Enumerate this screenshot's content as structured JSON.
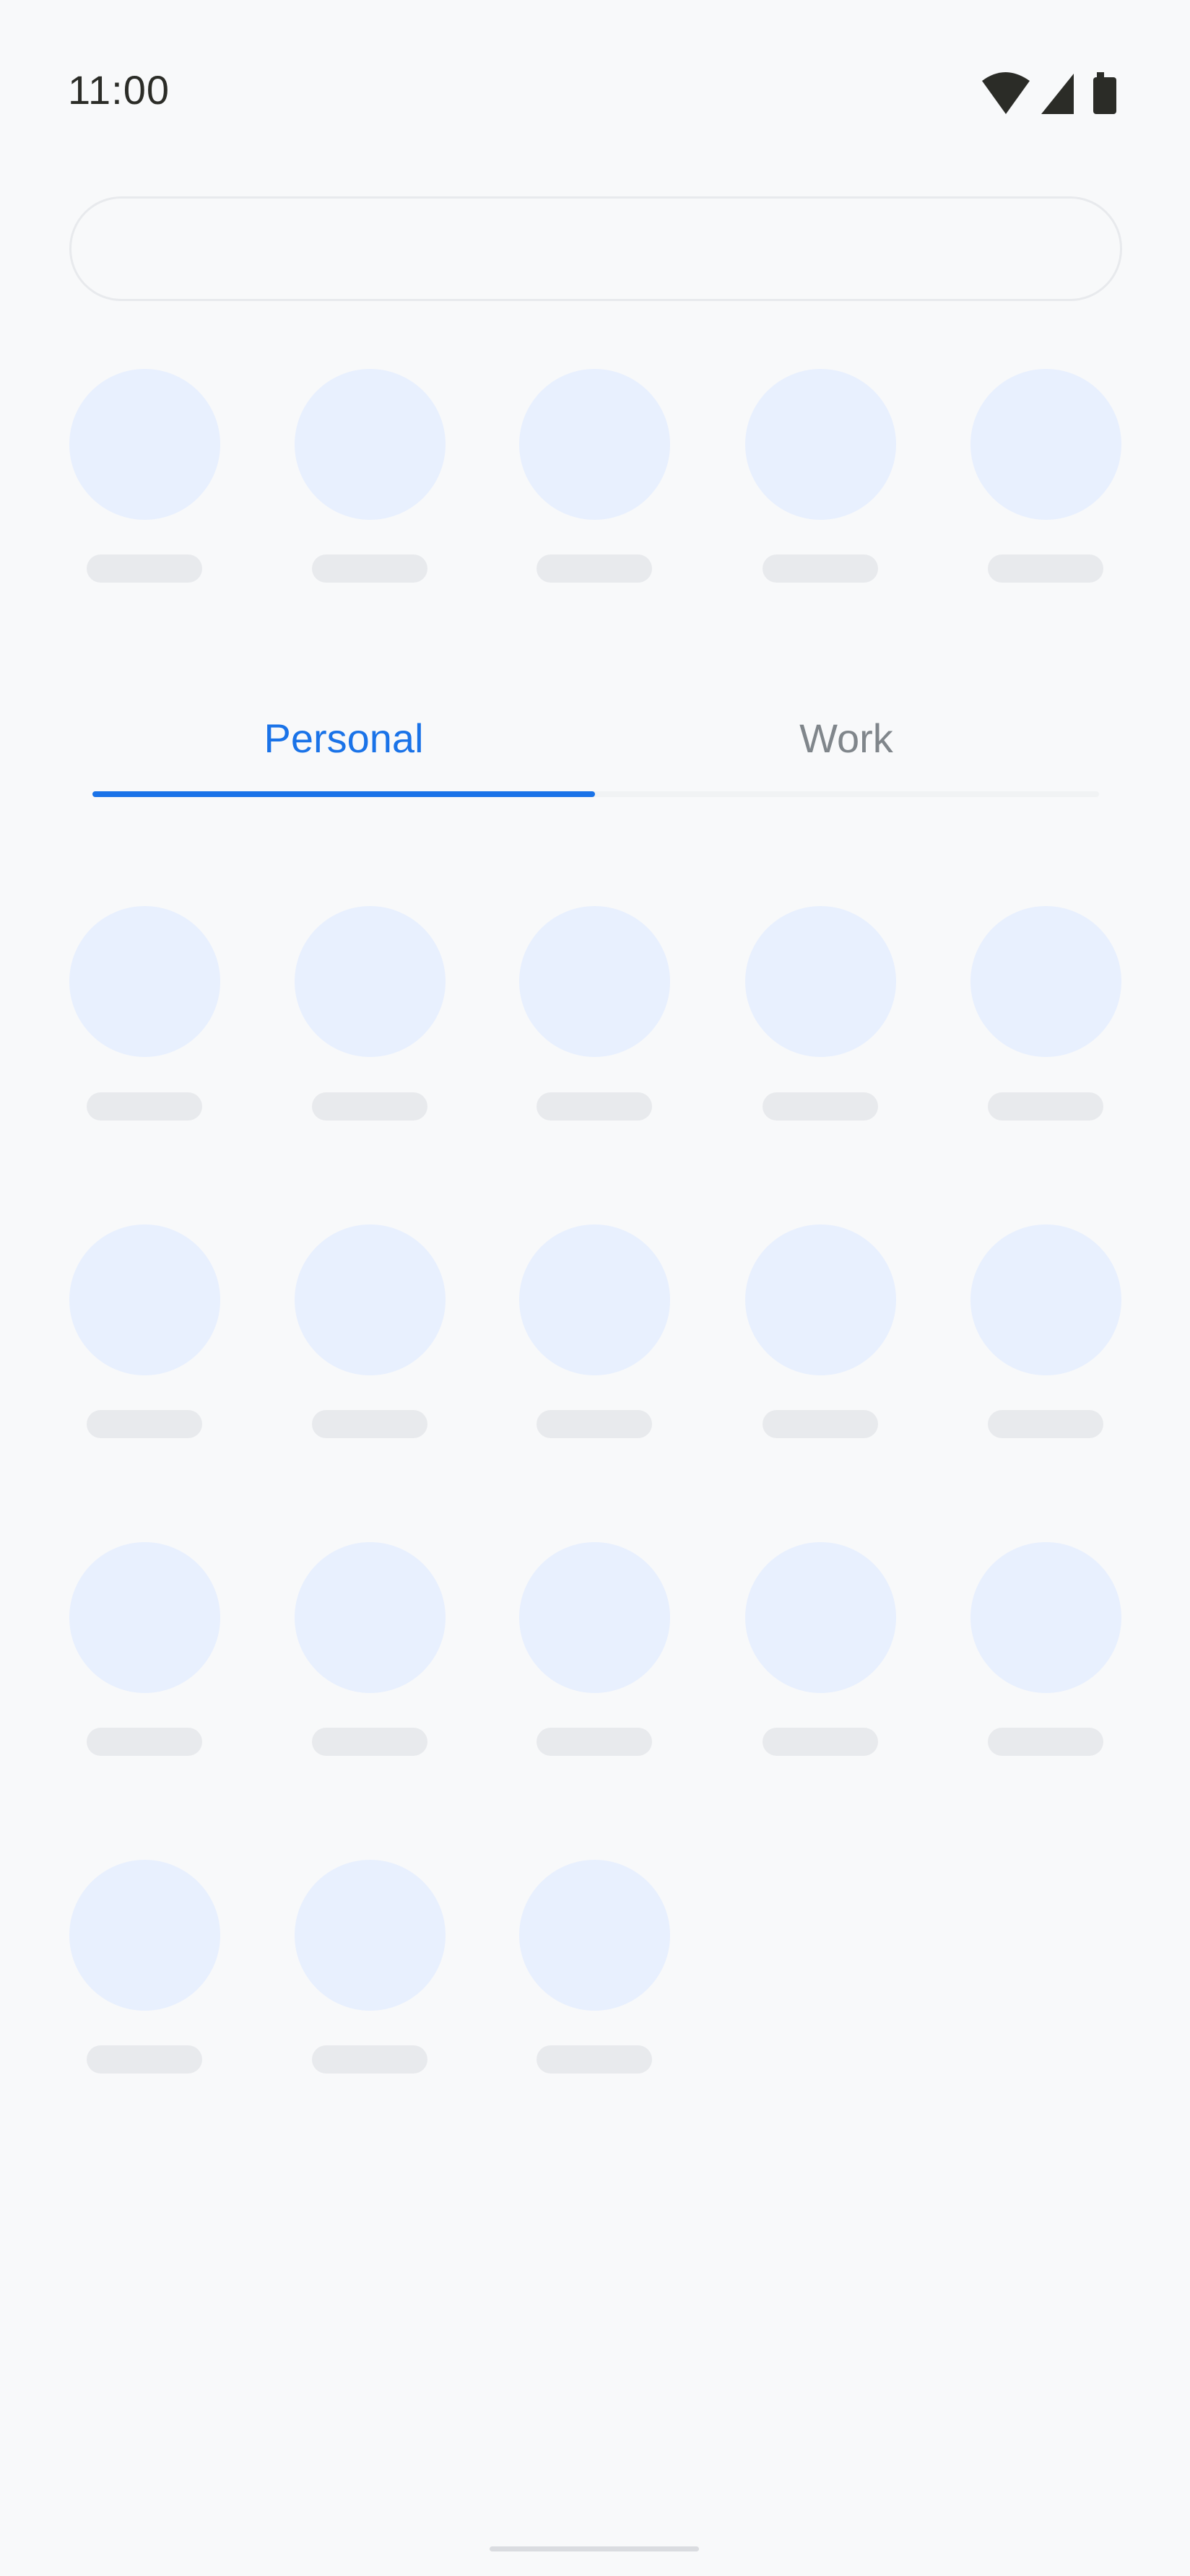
{
  "status_bar": {
    "time": "11:00",
    "icons": [
      "wifi-icon",
      "cellular-signal-icon",
      "battery-icon"
    ]
  },
  "search": {
    "placeholder": ""
  },
  "suggested_row": {
    "placeholder_count": 5
  },
  "tabs": [
    {
      "label": "Personal",
      "selected": true
    },
    {
      "label": "Work",
      "selected": false
    }
  ],
  "grid": {
    "placeholder_count": 18,
    "columns": 5
  },
  "colors": {
    "accent": "#1a73e8",
    "inactive_tab": "#80868b",
    "background": "#f8f9fa",
    "icon_placeholder": "#e8f0fe",
    "label_placeholder": "#e8eaed"
  }
}
